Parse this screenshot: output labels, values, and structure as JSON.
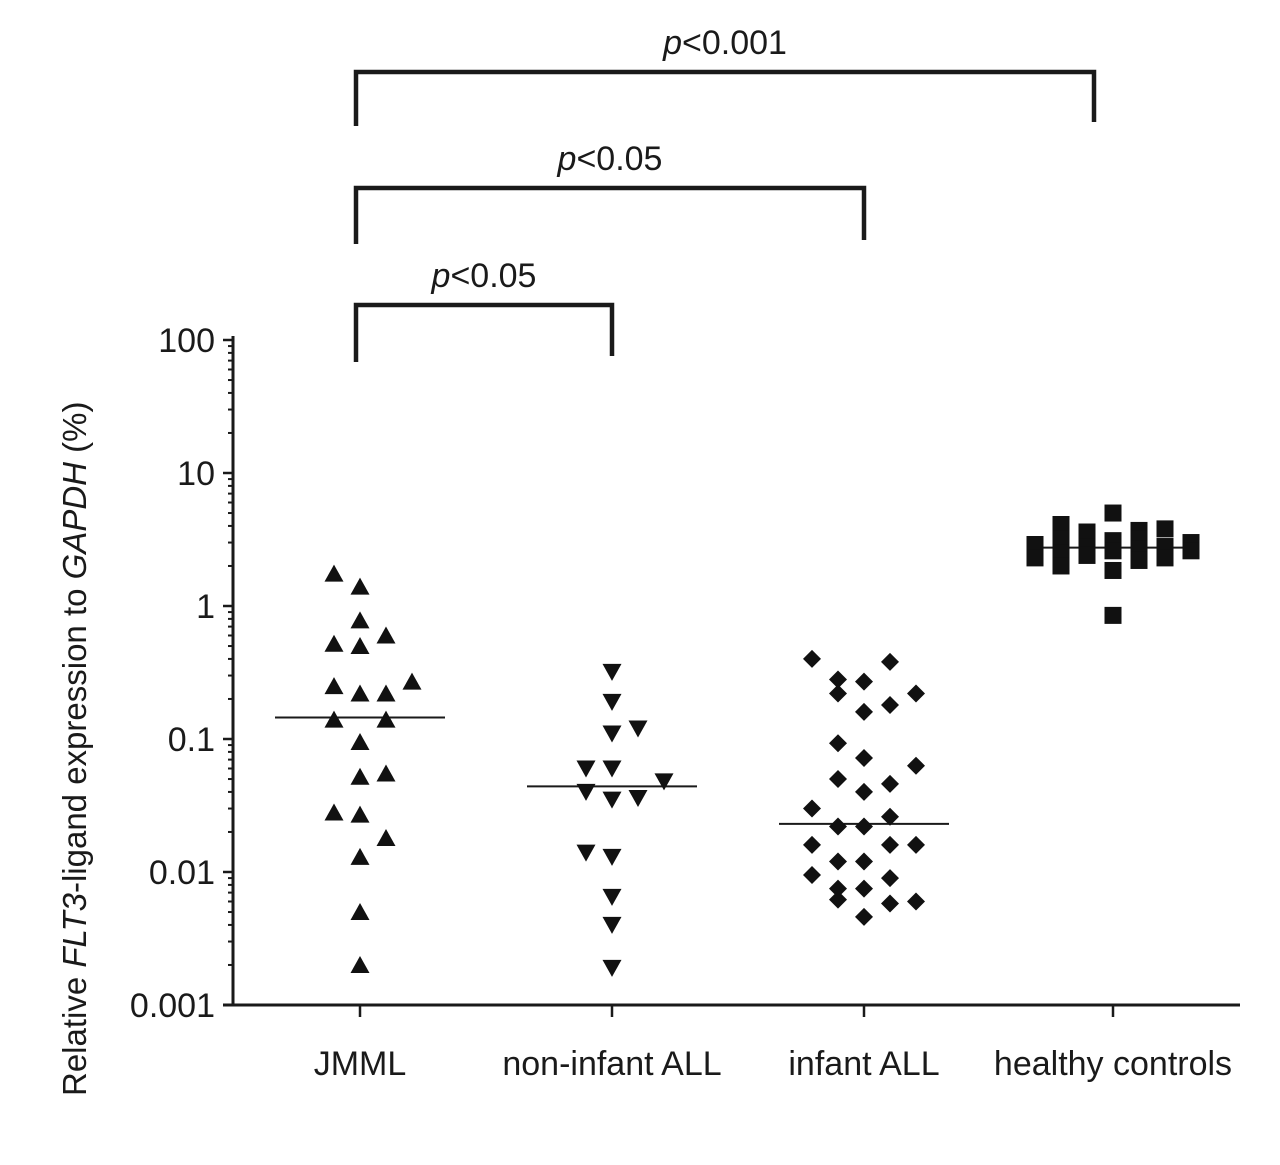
{
  "chart_data": {
    "type": "scatter",
    "title": "",
    "ylabel_parts": [
      "Relative ",
      "FLT3",
      "-ligand expression to ",
      "GAPDH",
      " (%)"
    ],
    "yscale": "log",
    "ylim": [
      0.001,
      100
    ],
    "yticks": [
      {
        "value": 0.001,
        "label": "0.001"
      },
      {
        "value": 0.01,
        "label": "0.01"
      },
      {
        "value": 0.1,
        "label": "0.1"
      },
      {
        "value": 1,
        "label": "1"
      },
      {
        "value": 10,
        "label": "10"
      },
      {
        "value": 100,
        "label": "100"
      }
    ],
    "categories": [
      "JMML",
      "non-infant ALL",
      "infant ALL",
      "healthy controls"
    ],
    "series": [
      {
        "name": "JMML",
        "marker": "triangle-up",
        "median": 0.145,
        "points": [
          {
            "offset": -1,
            "y": 1.75
          },
          {
            "offset": 0,
            "y": 1.4
          },
          {
            "offset": 0,
            "y": 0.78
          },
          {
            "offset": -1,
            "y": 0.52
          },
          {
            "offset": 0,
            "y": 0.5
          },
          {
            "offset": 1,
            "y": 0.6
          },
          {
            "offset": -1,
            "y": 0.25
          },
          {
            "offset": 0,
            "y": 0.22
          },
          {
            "offset": 1,
            "y": 0.22
          },
          {
            "offset": 2,
            "y": 0.27
          },
          {
            "offset": -1,
            "y": 0.14
          },
          {
            "offset": 1,
            "y": 0.14
          },
          {
            "offset": 0,
            "y": 0.095
          },
          {
            "offset": 0,
            "y": 0.052
          },
          {
            "offset": 1,
            "y": 0.055
          },
          {
            "offset": -1,
            "y": 0.028
          },
          {
            "offset": 0,
            "y": 0.027
          },
          {
            "offset": 1,
            "y": 0.018
          },
          {
            "offset": 0,
            "y": 0.013
          },
          {
            "offset": 0,
            "y": 0.005
          },
          {
            "offset": 0,
            "y": 0.002
          }
        ]
      },
      {
        "name": "non-infant ALL",
        "marker": "triangle-down",
        "median": 0.044,
        "points": [
          {
            "offset": 0,
            "y": 0.32
          },
          {
            "offset": 0,
            "y": 0.19
          },
          {
            "offset": 1,
            "y": 0.12
          },
          {
            "offset": 0,
            "y": 0.11
          },
          {
            "offset": -1,
            "y": 0.06
          },
          {
            "offset": 0,
            "y": 0.06
          },
          {
            "offset": 2,
            "y": 0.048
          },
          {
            "offset": -1,
            "y": 0.04
          },
          {
            "offset": 0,
            "y": 0.035
          },
          {
            "offset": 1,
            "y": 0.036
          },
          {
            "offset": -1,
            "y": 0.014
          },
          {
            "offset": 0,
            "y": 0.013
          },
          {
            "offset": 0,
            "y": 0.0065
          },
          {
            "offset": 0,
            "y": 0.004
          },
          {
            "offset": 0,
            "y": 0.0019
          }
        ]
      },
      {
        "name": "infant ALL",
        "marker": "diamond",
        "median": 0.023,
        "points": [
          {
            "offset": -2,
            "y": 0.4
          },
          {
            "offset": 1,
            "y": 0.38
          },
          {
            "offset": -1,
            "y": 0.28
          },
          {
            "offset": 0,
            "y": 0.27
          },
          {
            "offset": -1,
            "y": 0.22
          },
          {
            "offset": 2,
            "y": 0.22
          },
          {
            "offset": 1,
            "y": 0.18
          },
          {
            "offset": 0,
            "y": 0.16
          },
          {
            "offset": -1,
            "y": 0.093
          },
          {
            "offset": 0,
            "y": 0.072
          },
          {
            "offset": 2,
            "y": 0.063
          },
          {
            "offset": -1,
            "y": 0.05
          },
          {
            "offset": 1,
            "y": 0.046
          },
          {
            "offset": 0,
            "y": 0.04
          },
          {
            "offset": -2,
            "y": 0.03
          },
          {
            "offset": 1,
            "y": 0.026
          },
          {
            "offset": -1,
            "y": 0.022
          },
          {
            "offset": 0,
            "y": 0.022
          },
          {
            "offset": -2,
            "y": 0.016
          },
          {
            "offset": 1,
            "y": 0.016
          },
          {
            "offset": 2,
            "y": 0.016
          },
          {
            "offset": -1,
            "y": 0.012
          },
          {
            "offset": 0,
            "y": 0.012
          },
          {
            "offset": -2,
            "y": 0.0095
          },
          {
            "offset": 1,
            "y": 0.009
          },
          {
            "offset": -1,
            "y": 0.0075
          },
          {
            "offset": 0,
            "y": 0.0075
          },
          {
            "offset": -1,
            "y": 0.0062
          },
          {
            "offset": 1,
            "y": 0.0058
          },
          {
            "offset": 2,
            "y": 0.006
          },
          {
            "offset": 0,
            "y": 0.0046
          }
        ]
      },
      {
        "name": "healthy controls",
        "marker": "square",
        "median": 2.75,
        "points": [
          {
            "offset": 0,
            "y": 5.0
          },
          {
            "offset": -2,
            "y": 4.1
          },
          {
            "offset": -1,
            "y": 3.6
          },
          {
            "offset": 1,
            "y": 3.7
          },
          {
            "offset": 2,
            "y": 3.8
          },
          {
            "offset": -2,
            "y": 3.2
          },
          {
            "offset": 0,
            "y": 3.1
          },
          {
            "offset": 1,
            "y": 3.2
          },
          {
            "offset": 3,
            "y": 3.0
          },
          {
            "offset": -3,
            "y": 2.9
          },
          {
            "offset": -1,
            "y": 2.8
          },
          {
            "offset": 2,
            "y": 2.8
          },
          {
            "offset": -2,
            "y": 2.5
          },
          {
            "offset": 0,
            "y": 2.6
          },
          {
            "offset": 1,
            "y": 2.7
          },
          {
            "offset": 3,
            "y": 2.6
          },
          {
            "offset": -3,
            "y": 2.3
          },
          {
            "offset": -1,
            "y": 2.4
          },
          {
            "offset": 2,
            "y": 2.3
          },
          {
            "offset": -2,
            "y": 2.0
          },
          {
            "offset": 1,
            "y": 2.2
          },
          {
            "offset": 0,
            "y": 1.85
          },
          {
            "offset": 0,
            "y": 0.85
          }
        ]
      }
    ],
    "comparisons": [
      {
        "from": "JMML",
        "to": "non-infant ALL",
        "label_italic": "p",
        "label_rest": "<0.05"
      },
      {
        "from": "JMML",
        "to": "infant ALL",
        "label_italic": "p",
        "label_rest": "<0.05"
      },
      {
        "from": "JMML",
        "to": "healthy controls",
        "label_italic": "p",
        "label_rest": "<0.001"
      }
    ]
  }
}
